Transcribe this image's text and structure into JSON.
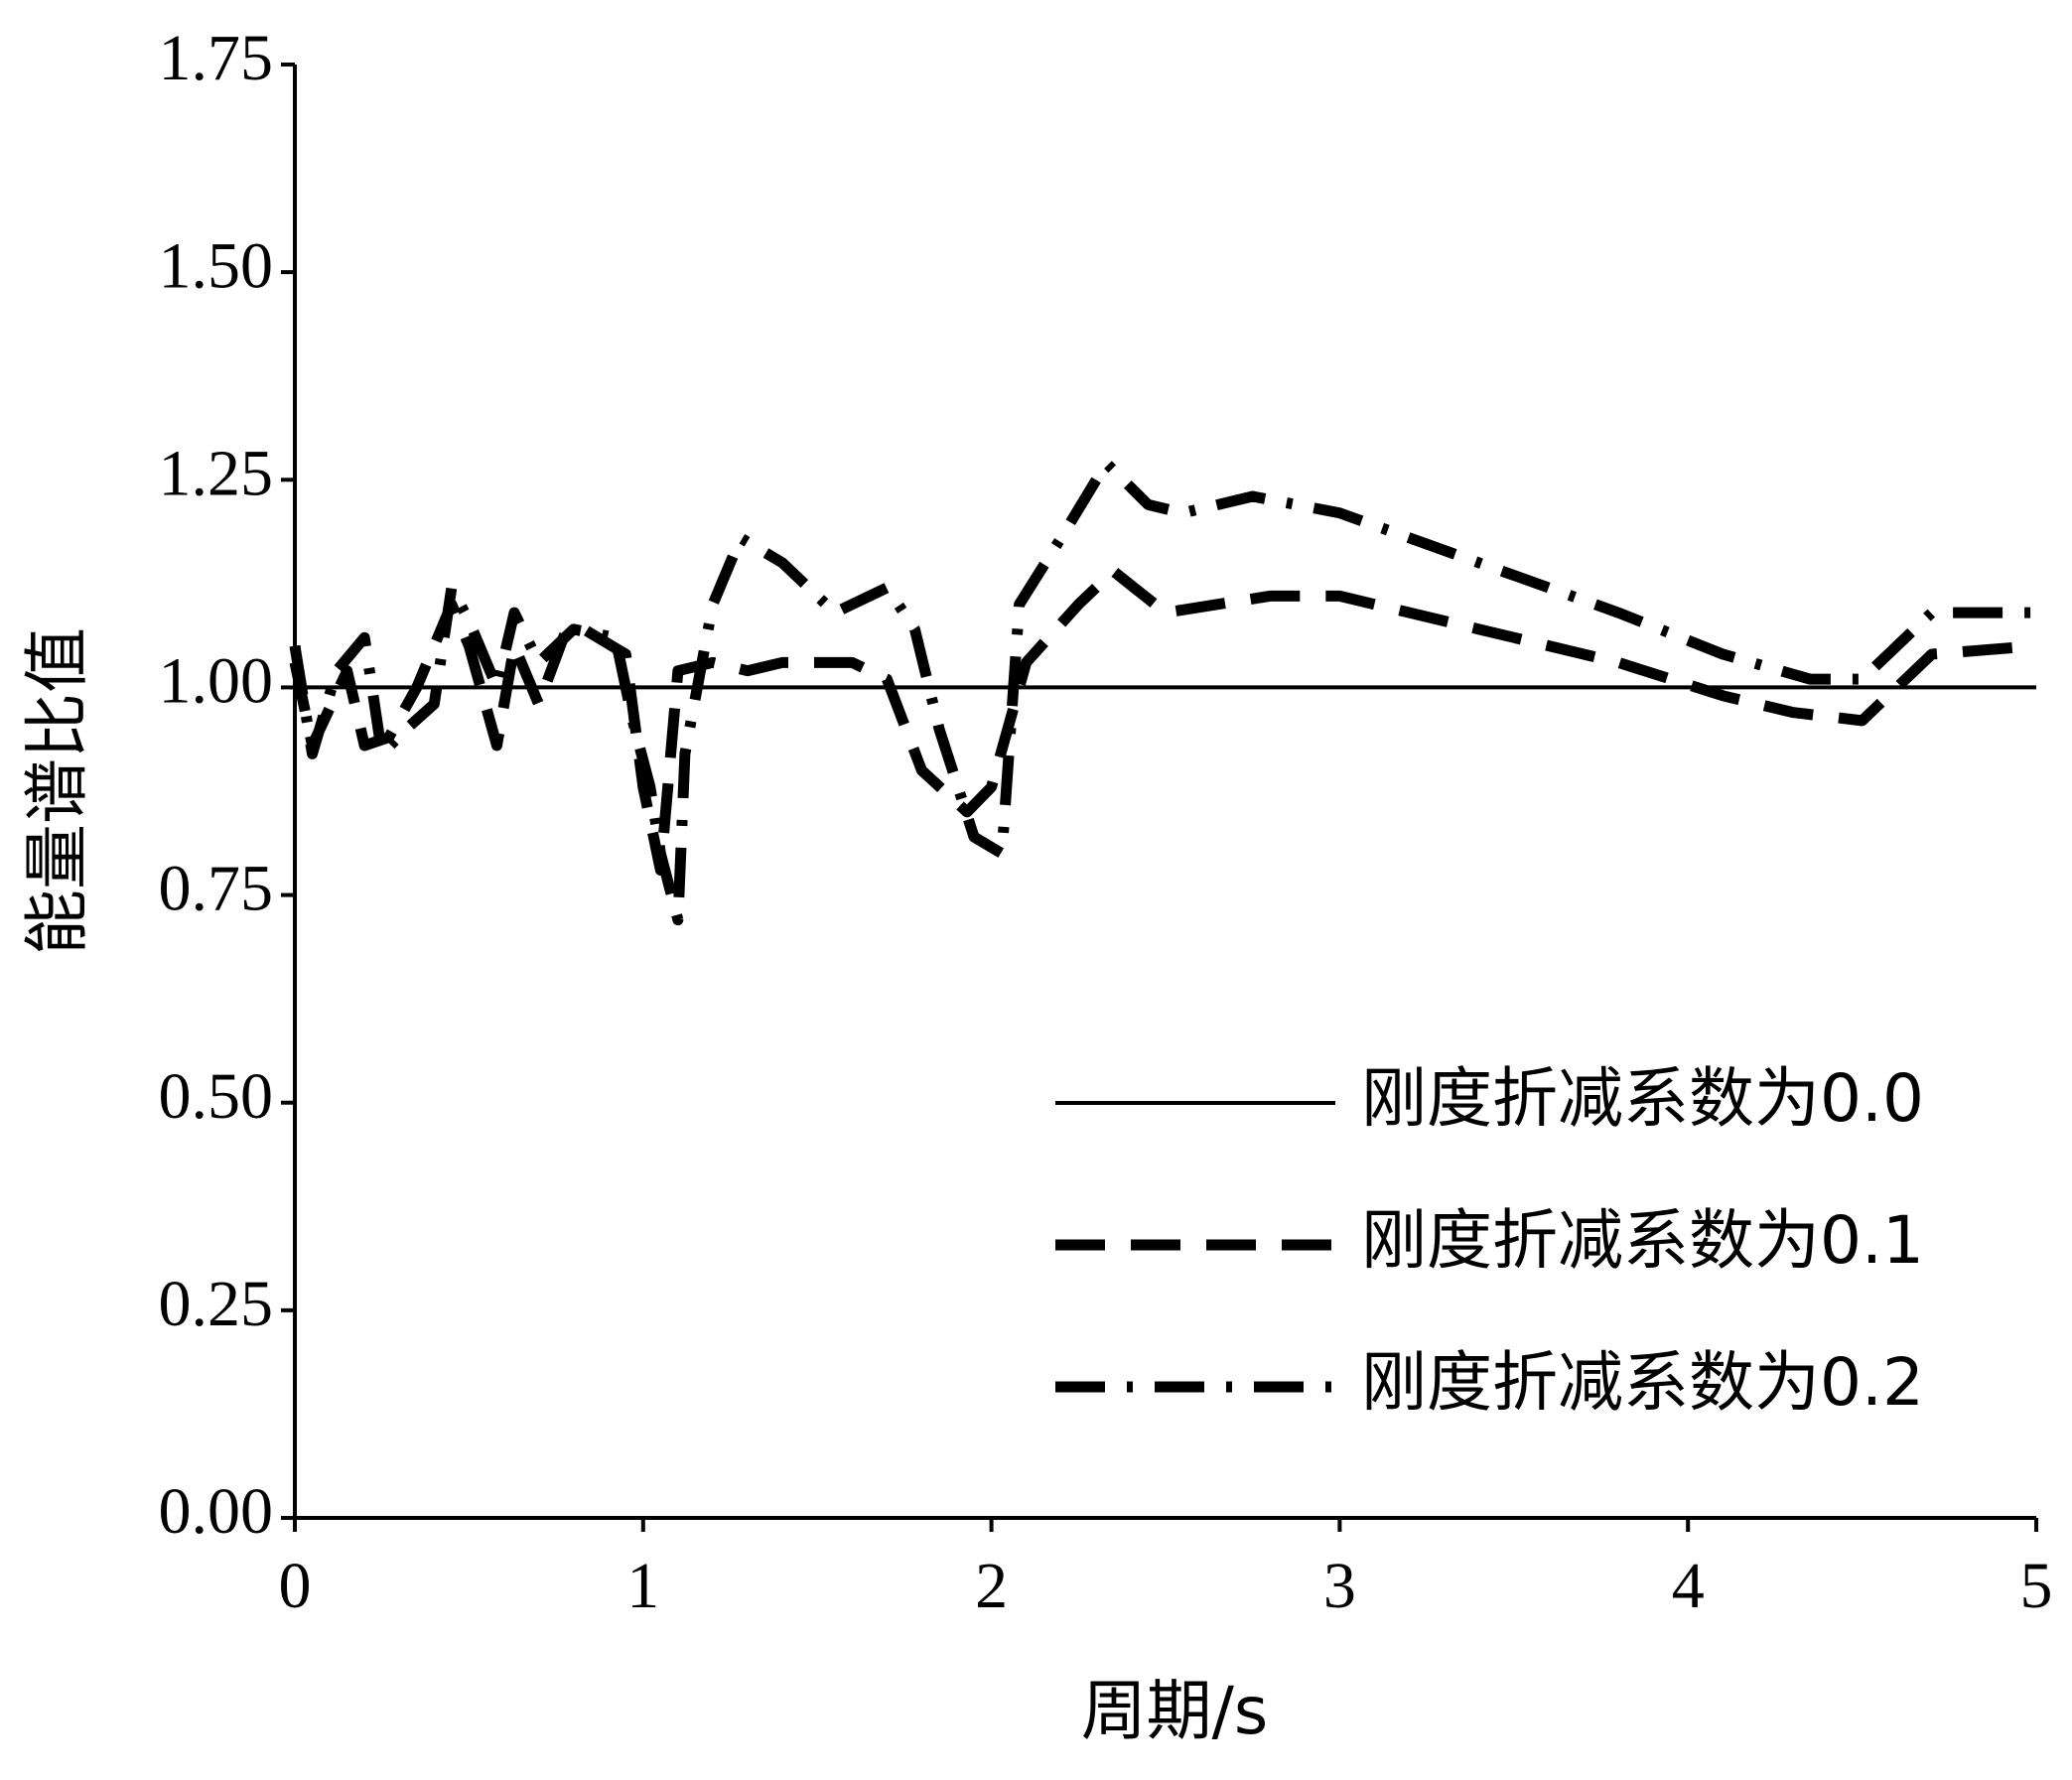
{
  "chart_data": {
    "type": "line",
    "xlabel": "周期/s",
    "ylabel": "能量谱比值",
    "xlim": [
      0,
      5
    ],
    "xticks": [
      0,
      1,
      2,
      3,
      4,
      5
    ],
    "ylim": [
      0,
      1.75
    ],
    "yticks": [
      {
        "value": 0,
        "label": "0.00"
      },
      0.25,
      {
        "value": 0.5,
        "label": "0.50"
      },
      0.75,
      {
        "value": 1,
        "label": "1.00"
      },
      1.25,
      {
        "value": 1.5,
        "label": "1.50"
      },
      1.75
    ],
    "legend": "lower right",
    "series": [
      {
        "name": "刚度折减系数为0.0",
        "color": "#000000",
        "style": "solid",
        "x": [
          0,
          5
        ],
        "values": [
          1,
          1
        ]
      },
      {
        "name": "刚度折减系数为0.1",
        "color": "#000000",
        "style": "dashed",
        "x": [
          0,
          0.05,
          0.15,
          0.2,
          0.27,
          0.35,
          0.45,
          0.5,
          0.58,
          0.63,
          0.7,
          0.78,
          0.83,
          0.95,
          1.0,
          1.05,
          1.1,
          1.2,
          1.3,
          1.4,
          1.6,
          1.7,
          1.8,
          1.93,
          2.0,
          2.1,
          2.25,
          2.35,
          2.5,
          2.8,
          3.0,
          3.4,
          3.8,
          4.1,
          4.3,
          4.5,
          4.6,
          4.7,
          5.0
        ],
        "values": [
          1.03,
          0.93,
          1.02,
          0.93,
          0.94,
          1.0,
          1.1,
          1.05,
          0.93,
          1.05,
          0.98,
          1.07,
          1.07,
          1.04,
          0.88,
          0.78,
          1.02,
          1.03,
          1.02,
          1.03,
          1.03,
          1.01,
          0.9,
          0.85,
          0.88,
          1.03,
          1.1,
          1.14,
          1.09,
          1.11,
          1.11,
          1.07,
          1.03,
          0.99,
          0.97,
          0.96,
          1.0,
          1.04,
          1.05
        ]
      },
      {
        "name": "刚度折减系数为0.2",
        "color": "#000000",
        "style": "dashdot",
        "x": [
          0,
          0.05,
          0.12,
          0.2,
          0.25,
          0.32,
          0.4,
          0.45,
          0.5,
          0.58,
          0.63,
          0.7,
          0.8,
          0.92,
          0.97,
          1.02,
          1.05,
          1.1,
          1.12,
          1.2,
          1.28,
          1.4,
          1.55,
          1.7,
          1.78,
          1.85,
          1.95,
          2.03,
          2.08,
          2.2,
          2.33,
          2.45,
          2.55,
          2.75,
          3.0,
          3.4,
          3.8,
          4.1,
          4.35,
          4.5,
          4.7,
          5.0
        ],
        "values": [
          1.05,
          0.92,
          1.02,
          1.06,
          0.92,
          0.95,
          0.98,
          1.12,
          1.08,
          1.0,
          1.09,
          1.03,
          1.07,
          1.06,
          0.96,
          0.88,
          0.8,
          0.72,
          0.92,
          1.1,
          1.18,
          1.15,
          1.09,
          1.12,
          1.07,
          0.95,
          0.82,
          0.8,
          1.1,
          1.18,
          1.27,
          1.22,
          1.21,
          1.23,
          1.21,
          1.15,
          1.09,
          1.04,
          1.01,
          1.01,
          1.09,
          1.09
        ]
      }
    ]
  }
}
